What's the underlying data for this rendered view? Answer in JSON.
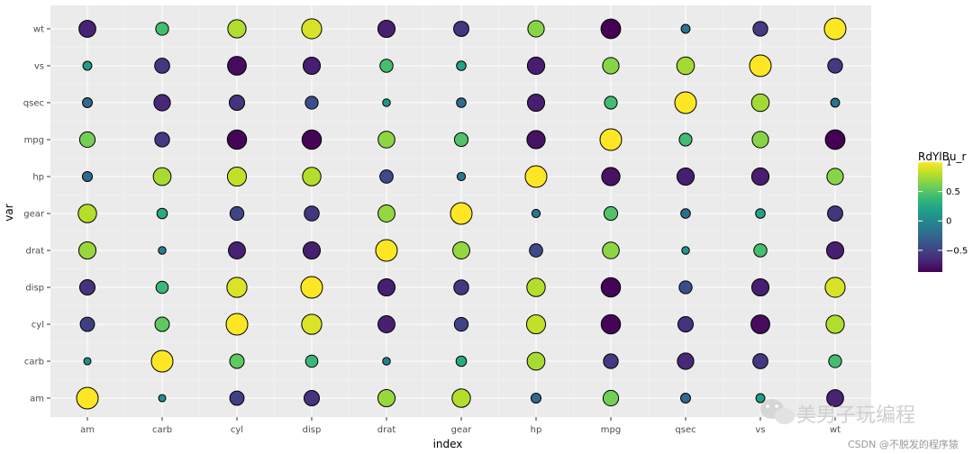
{
  "chart_data": {
    "type": "scatter",
    "subtype": "correlation-bubble-grid",
    "xlabel": "index",
    "ylabel": "var",
    "x_categories": [
      "am",
      "carb",
      "cyl",
      "disp",
      "drat",
      "gear",
      "hp",
      "mpg",
      "qsec",
      "vs",
      "wt"
    ],
    "y_categories": [
      "am",
      "carb",
      "cyl",
      "disp",
      "drat",
      "gear",
      "hp",
      "mpg",
      "qsec",
      "vs",
      "wt"
    ],
    "matrix": [
      [
        1.0,
        0.06,
        -0.52,
        -0.59,
        0.71,
        0.79,
        -0.24,
        0.6,
        -0.23,
        0.17,
        -0.69
      ],
      [
        0.06,
        1.0,
        0.53,
        0.39,
        -0.09,
        0.27,
        0.75,
        -0.55,
        -0.66,
        -0.57,
        0.43
      ],
      [
        -0.52,
        0.53,
        1.0,
        0.9,
        -0.7,
        -0.49,
        0.83,
        -0.85,
        -0.59,
        -0.81,
        0.78
      ],
      [
        -0.59,
        0.39,
        0.9,
        1.0,
        -0.71,
        -0.56,
        0.79,
        -0.85,
        -0.43,
        -0.71,
        0.89
      ],
      [
        0.71,
        -0.09,
        -0.7,
        -0.71,
        1.0,
        0.7,
        -0.45,
        0.68,
        0.09,
        0.44,
        -0.71
      ],
      [
        0.79,
        0.27,
        -0.49,
        -0.56,
        0.7,
        1.0,
        -0.13,
        0.48,
        -0.21,
        0.21,
        -0.58
      ],
      [
        -0.24,
        0.75,
        0.83,
        0.79,
        -0.45,
        -0.13,
        1.0,
        -0.78,
        -0.71,
        -0.72,
        0.66
      ],
      [
        0.6,
        -0.55,
        -0.85,
        -0.85,
        0.68,
        0.48,
        -0.78,
        1.0,
        0.42,
        0.66,
        -0.87
      ],
      [
        -0.23,
        -0.66,
        -0.59,
        -0.43,
        0.09,
        -0.21,
        -0.71,
        0.42,
        1.0,
        0.74,
        -0.17
      ],
      [
        0.17,
        -0.57,
        -0.81,
        -0.71,
        0.44,
        0.21,
        -0.72,
        0.66,
        0.74,
        1.0,
        -0.55
      ],
      [
        -0.69,
        0.43,
        0.78,
        0.89,
        -0.71,
        -0.58,
        0.66,
        -0.87,
        -0.17,
        -0.55,
        1.0
      ]
    ],
    "color_scale": {
      "name": "viridis",
      "domain": [
        -0.87,
        1.0
      ],
      "stops": [
        "#440154",
        "#482878",
        "#3e4989",
        "#31688e",
        "#26828e",
        "#1f9e89",
        "#35b779",
        "#6ece58",
        "#b5de2b",
        "#fde725"
      ]
    },
    "size_encoding": "absolute value",
    "grid": true,
    "panel_background": "#ebebeb",
    "legend": {
      "title": "RdYlBu_r",
      "position": "right",
      "ticks": [
        1,
        0.5,
        0,
        -0.5
      ],
      "tick_labels": [
        "1",
        "0.5",
        "0",
        "−0.5"
      ]
    }
  },
  "watermark": {
    "icon": "wechat-icon",
    "text": "美男子玩编程",
    "credit": "CSDN @不脱发的程序猿"
  }
}
